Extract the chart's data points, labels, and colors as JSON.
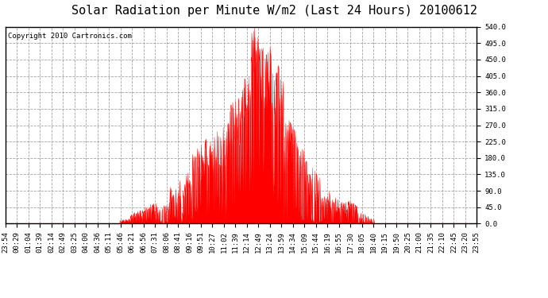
{
  "title": "Solar Radiation per Minute W/m2 (Last 24 Hours) 20100612",
  "copyright_text": "Copyright 2010 Cartronics.com",
  "y_ticks": [
    0.0,
    45.0,
    90.0,
    135.0,
    180.0,
    225.0,
    270.0,
    315.0,
    360.0,
    405.0,
    450.0,
    495.0,
    540.0
  ],
  "ylim": [
    0,
    540
  ],
  "fill_color": "#ff0000",
  "line_color": "#ff0000",
  "bg_color": "#ffffff",
  "grid_color": "#999999",
  "border_color": "#000000",
  "dashed_line_color": "#ff0000",
  "title_fontsize": 11,
  "copyright_fontsize": 6.5,
  "tick_label_fontsize": 6.5,
  "x_tick_labels": [
    "23:54",
    "00:29",
    "01:04",
    "01:39",
    "02:14",
    "02:49",
    "03:25",
    "04:00",
    "04:36",
    "05:11",
    "05:46",
    "06:21",
    "06:56",
    "07:31",
    "08:06",
    "08:41",
    "09:16",
    "09:51",
    "10:27",
    "11:02",
    "11:39",
    "12:14",
    "12:49",
    "13:24",
    "13:59",
    "14:34",
    "15:09",
    "15:44",
    "16:19",
    "16:55",
    "17:30",
    "18:05",
    "18:40",
    "19:15",
    "19:50",
    "20:25",
    "21:00",
    "21:35",
    "22:10",
    "22:45",
    "23:20",
    "23:55"
  ],
  "n_points": 1440,
  "sunrise_idx": 320,
  "sunset_idx": 1105
}
